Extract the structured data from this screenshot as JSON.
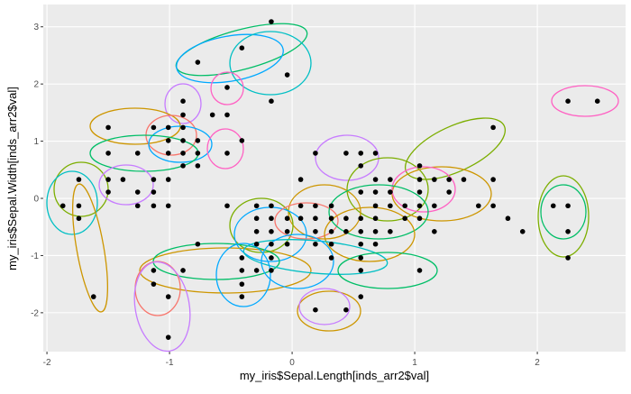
{
  "chart_data": {
    "type": "scatter",
    "x_label": "my_iris$Sepal.Length[inds_arr2$val]",
    "y_label": "my_iris$Sepal.Width[inds_arr2$val]",
    "xlim": [
      -2.03,
      2.72
    ],
    "ylim": [
      -2.68,
      3.39
    ],
    "xticks": [
      -2,
      -1,
      0,
      1,
      2
    ],
    "yticks": [
      -2,
      -1,
      0,
      1,
      2,
      3
    ],
    "grid": true,
    "series": [
      {
        "color": "#000000",
        "x": [
          -0.17,
          -0.41,
          -0.77,
          -0.04,
          -0.53,
          -0.17,
          2.25,
          2.49,
          -0.89,
          -0.89,
          -0.65,
          -0.53,
          1.64,
          -1.5,
          -1.13,
          -1.01,
          -0.89,
          -1.01,
          -0.89,
          -0.77,
          -0.41,
          -1.01,
          -0.89,
          -0.77,
          -1.5,
          -1.26,
          -0.53,
          0.19,
          0.44,
          0.56,
          0.68,
          -0.89,
          -0.77,
          0.56,
          1.04,
          -1.74,
          -1.5,
          -1.38,
          -1.13,
          -1.01,
          0.07,
          0.68,
          0.8,
          1.04,
          1.16,
          1.28,
          1.4,
          1.64,
          -1.5,
          -1.26,
          -1.13,
          0.56,
          0.68,
          0.8,
          1.04,
          1.28,
          -1.87,
          -1.74,
          -1.26,
          -1.13,
          -1.01,
          -0.53,
          -0.29,
          -0.17,
          0.07,
          0.19,
          0.32,
          0.68,
          0.8,
          0.92,
          1.04,
          1.16,
          1.52,
          1.64,
          2.13,
          2.25,
          -1.74,
          -0.29,
          -0.17,
          -0.04,
          0.07,
          0.19,
          0.32,
          0.44,
          0.56,
          0.68,
          0.92,
          1.04,
          1.76,
          -0.29,
          -0.17,
          -0.04,
          0.19,
          0.32,
          0.44,
          0.56,
          0.68,
          0.8,
          1.16,
          1.88,
          2.25,
          -0.77,
          -0.29,
          -0.17,
          -0.04,
          0.19,
          0.32,
          0.56,
          0.68,
          -0.41,
          -0.17,
          0.32,
          0.56,
          2.25,
          -1.13,
          -0.89,
          -0.41,
          -0.29,
          -0.17,
          0.56,
          1.04,
          -1.13,
          -0.41,
          -1.62,
          -1.01,
          -0.41,
          0.56,
          0.19,
          0.44,
          -1.01
        ],
        "y": [
          3.09,
          2.63,
          2.38,
          2.16,
          1.94,
          1.7,
          1.7,
          1.7,
          1.7,
          1.46,
          1.46,
          1.46,
          1.24,
          1.24,
          1.24,
          1.24,
          1.24,
          1.01,
          1.01,
          1.01,
          1.01,
          0.79,
          0.79,
          0.79,
          0.79,
          0.79,
          0.79,
          0.79,
          0.79,
          0.79,
          0.79,
          0.57,
          0.57,
          0.57,
          0.57,
          0.33,
          0.33,
          0.33,
          0.33,
          0.33,
          0.33,
          0.33,
          0.33,
          0.33,
          0.33,
          0.33,
          0.33,
          0.33,
          0.11,
          0.11,
          0.11,
          0.11,
          0.11,
          0.11,
          0.11,
          0.11,
          -0.13,
          -0.13,
          -0.13,
          -0.13,
          -0.13,
          -0.13,
          -0.13,
          -0.13,
          -0.13,
          -0.13,
          -0.13,
          -0.13,
          -0.13,
          -0.13,
          -0.13,
          -0.13,
          -0.13,
          -0.13,
          -0.13,
          -0.13,
          -0.35,
          -0.35,
          -0.35,
          -0.35,
          -0.35,
          -0.35,
          -0.35,
          -0.35,
          -0.35,
          -0.35,
          -0.35,
          -0.35,
          -0.35,
          -0.58,
          -0.58,
          -0.58,
          -0.58,
          -0.58,
          -0.58,
          -0.58,
          -0.58,
          -0.58,
          -0.58,
          -0.58,
          -0.58,
          -0.8,
          -0.8,
          -0.8,
          -0.8,
          -0.8,
          -0.8,
          -0.8,
          -0.8,
          -1.04,
          -1.04,
          -1.04,
          -1.04,
          -1.04,
          -1.26,
          -1.26,
          -1.26,
          -1.26,
          -1.26,
          -1.26,
          -1.26,
          -1.5,
          -1.5,
          -1.72,
          -1.72,
          -1.72,
          -1.72,
          -1.95,
          -1.95,
          -2.43
        ]
      }
    ]
  }
}
